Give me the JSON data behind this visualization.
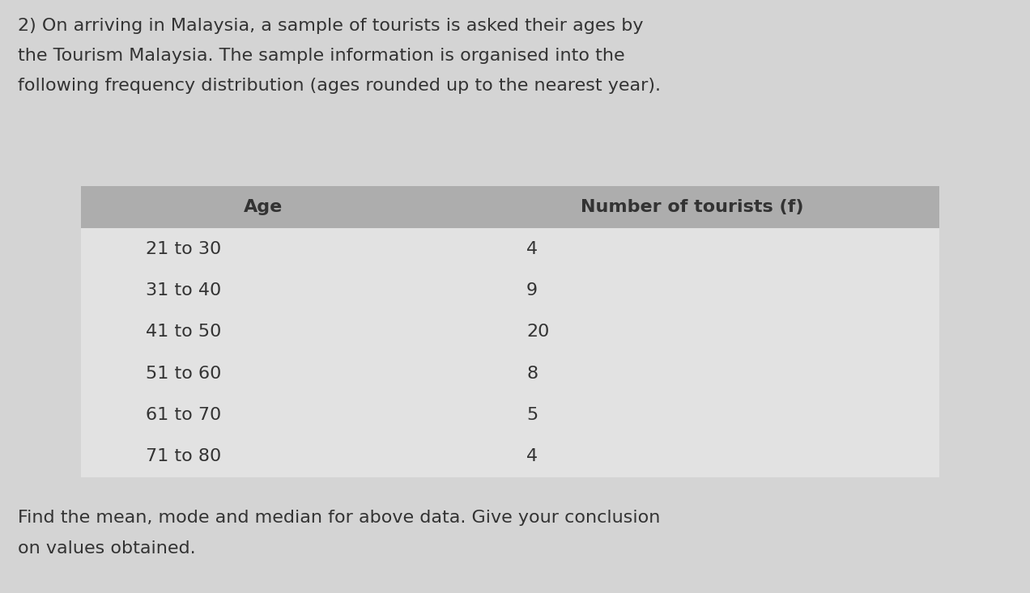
{
  "title_line1": "2) On arriving in Malaysia, a sample of tourists is asked their ages by",
  "title_line2": "the Tourism Malaysia. The sample information is organised into the",
  "title_line3": "following frequency distribution (ages rounded up to the nearest year).",
  "footer_line1": "Find the mean, mode and median for above data. Give your conclusion",
  "footer_line2": "on values obtained.",
  "col1_header": "Age",
  "col2_header": "Number of tourists (f)",
  "rows": [
    [
      "21 to 30",
      "4"
    ],
    [
      "31 to 40",
      "9"
    ],
    [
      "41 to 50",
      "20"
    ],
    [
      "51 to 60",
      "8"
    ],
    [
      "61 to 70",
      "5"
    ],
    [
      "71 to 80",
      "4"
    ]
  ],
  "background_color": "#d4d4d4",
  "table_header_bg": "#adadad",
  "table_data_bg": "#e2e2e2",
  "text_color": "#333333",
  "title_fontsize": 16,
  "header_fontsize": 16,
  "data_fontsize": 16,
  "footer_fontsize": 16,
  "font_family": "DejaVu Sans"
}
